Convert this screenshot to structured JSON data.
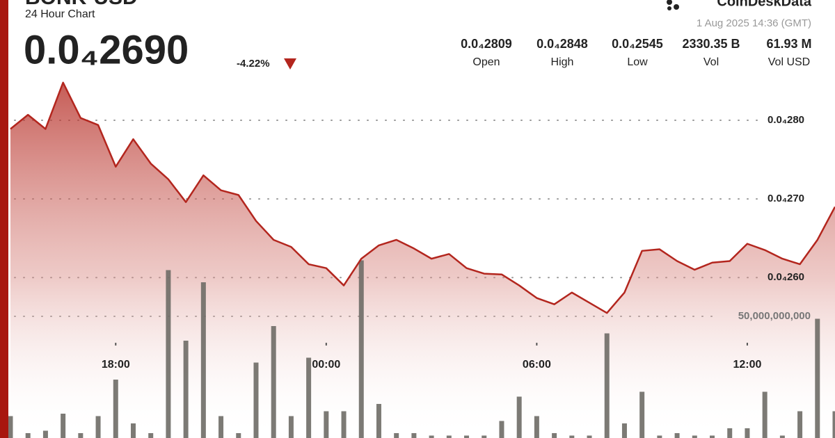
{
  "chart_data": {
    "type": "line",
    "title": "BONK-USD",
    "subtitle": "24 Hour Chart",
    "brand": "CoinDeskData",
    "timestamp": "1 Aug 2025 14:36 (GMT)",
    "price": "0.0₄2690",
    "change": "-4.22%",
    "stats": [
      {
        "value": "0.0₄2809",
        "label": "Open"
      },
      {
        "value": "0.0₄2848",
        "label": "High"
      },
      {
        "value": "0.0₄2545",
        "label": "Low"
      },
      {
        "value": "2330.35 B",
        "label": "Vol"
      },
      {
        "value": "61.93 M",
        "label": "Vol USD"
      }
    ],
    "x": [
      15,
      15.5,
      16,
      16.5,
      17,
      17.5,
      18,
      18.5,
      19,
      19.5,
      20,
      20.5,
      21,
      21.5,
      22,
      22.5,
      23,
      23.5,
      24,
      24.5,
      25,
      25.5,
      26,
      26.5,
      27,
      27.5,
      28,
      28.5,
      29,
      29.5,
      30,
      30.5,
      31,
      31.5,
      32,
      32.5,
      33,
      33.5,
      34,
      34.5,
      35,
      35.5,
      36,
      36.5,
      37,
      37.5,
      38,
      38.5
    ],
    "xlim": [
      15,
      38.5
    ],
    "xticks": [
      {
        "value": 18,
        "label": "18:00"
      },
      {
        "value": 24,
        "label": "00:00"
      },
      {
        "value": 30,
        "label": "06:00"
      },
      {
        "value": 36,
        "label": "12:00"
      }
    ],
    "ylim": [
      2.396e-05,
      2.953e-05
    ],
    "yticks": [
      {
        "value": 2.6e-05,
        "label": "0.0₄260"
      },
      {
        "value": 2.7e-05,
        "label": "0.0₄270"
      },
      {
        "value": 2.8e-05,
        "label": "0.0₄280"
      }
    ],
    "y2lim": [
      0,
      180000000000
    ],
    "y2ticks": [
      {
        "value": 50000000000,
        "label": "50,000,000,000"
      }
    ],
    "grid": true,
    "series": [
      {
        "color": "#b3261e",
        "values": [
          2.789e-05,
          2.807e-05,
          2.789e-05,
          2.848e-05,
          2.803e-05,
          2.794e-05,
          2.741e-05,
          2.776e-05,
          2.745e-05,
          2.725e-05,
          2.696e-05,
          2.73e-05,
          2.711e-05,
          2.705e-05,
          2.672e-05,
          2.648e-05,
          2.639e-05,
          2.617e-05,
          2.612e-05,
          2.59e-05,
          2.624e-05,
          2.641e-05,
          2.648e-05,
          2.637e-05,
          2.624e-05,
          2.63e-05,
          2.612e-05,
          2.605e-05,
          2.604e-05,
          2.59e-05,
          2.574e-05,
          2.566e-05,
          2.581e-05,
          2.568e-05,
          2.555e-05,
          2.581e-05,
          2.634e-05,
          2.636e-05,
          2.621e-05,
          2.61e-05,
          2.619e-05,
          2.621e-05,
          2.643e-05,
          2.635e-05,
          2.624e-05,
          2.617e-05,
          2.648e-05,
          2.69e-05
        ]
      },
      {
        "type": "bar",
        "axis": "y2",
        "color": "#6e6b66",
        "values": [
          9000000000,
          2000000000,
          3000000000,
          10000000000,
          2000000000,
          9000000000,
          24000000000,
          6000000000,
          2000000000,
          69000000000,
          40000000000,
          64000000000,
          9000000000,
          2000000000,
          31000000000,
          46000000000,
          9000000000,
          33000000000,
          11000000000,
          11000000000,
          73000000000,
          14000000000,
          2000000000,
          2000000000,
          1000000000,
          1000000000,
          1000000000,
          1000000000,
          7000000000,
          17000000000,
          9000000000,
          2000000000,
          1000000000,
          1000000000,
          43000000000,
          6000000000,
          19000000000,
          1000000000,
          2000000000,
          1000000000,
          1000000000,
          4000000000,
          4000000000,
          19000000000,
          1000000000,
          11000000000,
          49000000000,
          11000000000
        ]
      }
    ]
  }
}
